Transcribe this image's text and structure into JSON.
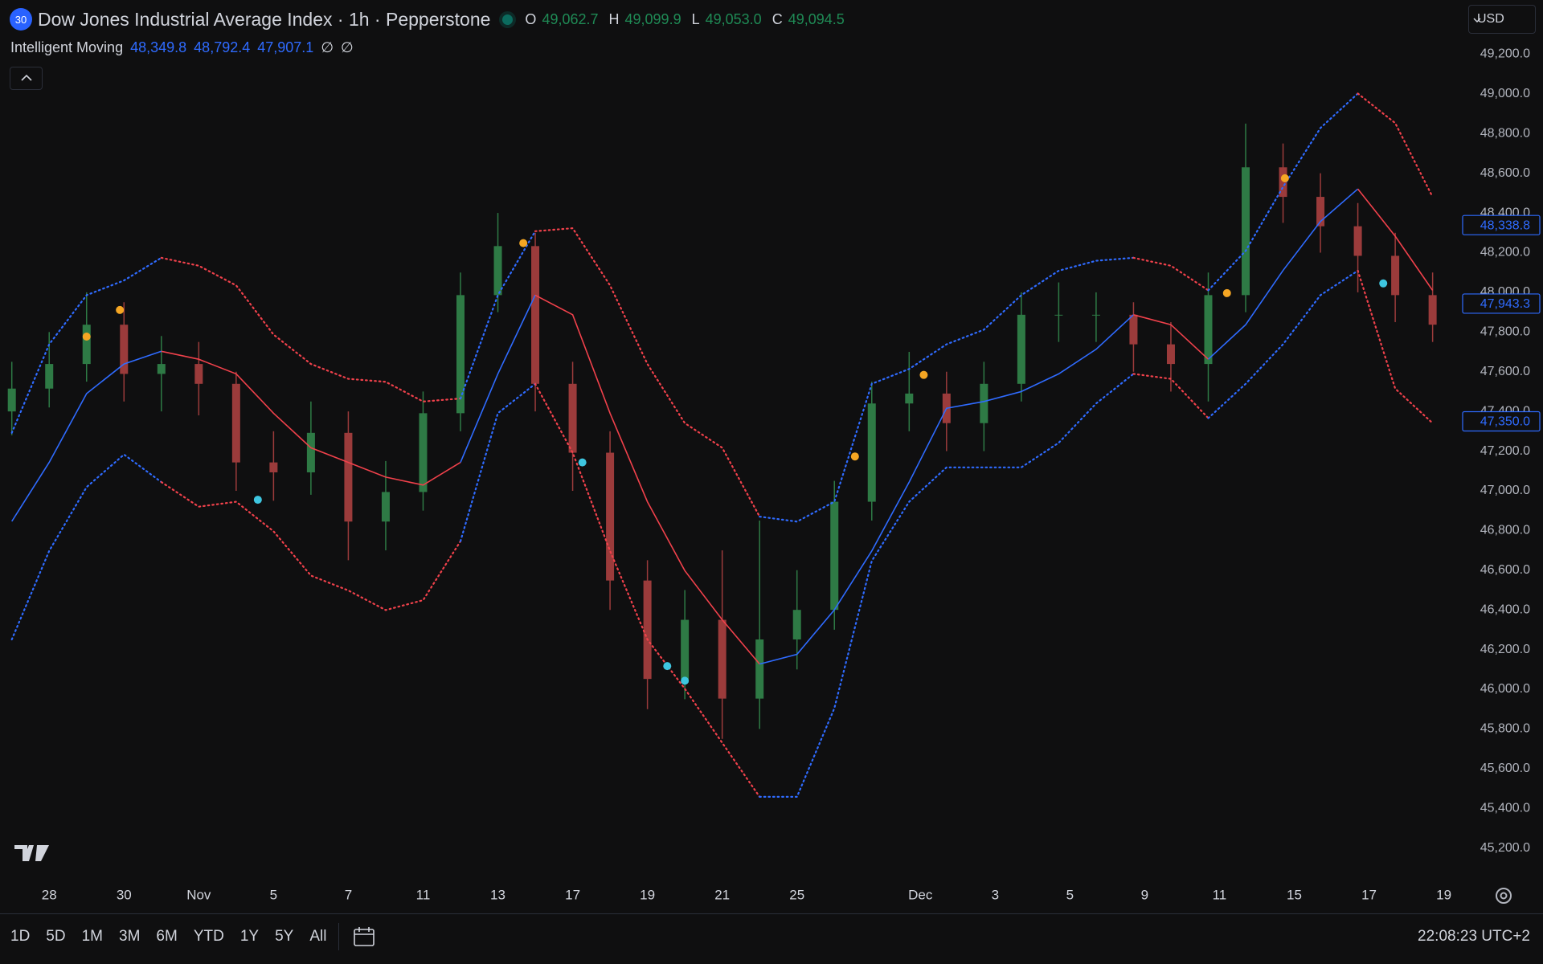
{
  "header": {
    "badge": "30",
    "title": "Dow Jones Industrial Average Index · 1h · Pepperstone",
    "ohlc": [
      {
        "key": "O",
        "value": "49,062.7"
      },
      {
        "key": "H",
        "value": "49,099.9"
      },
      {
        "key": "L",
        "value": "49,053.0"
      },
      {
        "key": "C",
        "value": "49,094.5"
      }
    ],
    "indicator": {
      "name": "Intelligent Moving",
      "values": [
        "48,349.8",
        "48,792.4",
        "47,907.1"
      ],
      "flags": [
        "∅",
        "∅"
      ]
    },
    "currency": "USD"
  },
  "chart_data": {
    "type": "candlestick",
    "x": [
      -1,
      0,
      1,
      2,
      3,
      4,
      5,
      6,
      7,
      8,
      9,
      10,
      11,
      12,
      13,
      14,
      15,
      16,
      17,
      18,
      19,
      20,
      21,
      22,
      23,
      24,
      25,
      26,
      27,
      28,
      29,
      30,
      31,
      32,
      33,
      34,
      35,
      36,
      37
    ],
    "open": [
      47400,
      47515,
      47639,
      47837,
      47589,
      47639,
      47539,
      47143,
      47093,
      47292,
      46845,
      46994,
      47391,
      47986,
      48233,
      47539,
      47192,
      46548,
      46052,
      46350,
      45953,
      46251,
      46400,
      46945,
      47440,
      47490,
      47341,
      47539,
      47887,
      47887,
      47887,
      47738,
      47639,
      47986,
      48630,
      48481,
      48333,
      48184,
      47986
    ],
    "high": [
      47650,
      47800,
      48000,
      47950,
      47780,
      47750,
      47600,
      47300,
      47450,
      47400,
      47150,
      47500,
      48100,
      48400,
      48300,
      47650,
      47300,
      46650,
      46500,
      46700,
      46850,
      46600,
      47050,
      47550,
      47700,
      47600,
      47650,
      48000,
      48050,
      48000,
      47950,
      47850,
      48100,
      48850,
      48750,
      48600,
      48450,
      48300,
      48100
    ],
    "low": [
      47280,
      47420,
      47550,
      47450,
      47400,
      47380,
      47000,
      46950,
      46980,
      46650,
      46700,
      46900,
      47300,
      47900,
      47400,
      47000,
      46400,
      45900,
      45950,
      45750,
      45800,
      46100,
      46300,
      46850,
      47300,
      47200,
      47200,
      47450,
      47750,
      47750,
      47600,
      47500,
      47450,
      47900,
      48350,
      48200,
      48000,
      47850,
      47750
    ],
    "close": [
      47515,
      47639,
      47837,
      47589,
      47639,
      47539,
      47143,
      47093,
      47292,
      46845,
      46994,
      47391,
      47986,
      48233,
      47539,
      47192,
      46548,
      46052,
      46350,
      45953,
      46251,
      46400,
      46945,
      47440,
      47490,
      47341,
      47539,
      47887,
      47887,
      47887,
      47738,
      47639,
      47986,
      48630,
      48481,
      48333,
      48184,
      47986,
      47837
    ],
    "candle_up_color": "#2e7a45",
    "candle_down_color": "#9b3b3b",
    "basis": {
      "values": [
        46846,
        47143,
        47490,
        47639,
        47703,
        47663,
        47589,
        47391,
        47217,
        47143,
        47069,
        47029,
        47143,
        47589,
        47986,
        47887,
        47391,
        46945,
        46598,
        46350,
        46127,
        46176,
        46400,
        46697,
        47044,
        47416,
        47450,
        47500,
        47589,
        47713,
        47887,
        47837,
        47663,
        47837,
        48110,
        48357,
        48521,
        48283,
        48010
      ]
    },
    "bands": [
      {
        "values": [
          47292,
          47738,
          47986,
          48060,
          48174,
          48134,
          48035,
          47787,
          47639,
          47564,
          47549,
          47450,
          47465,
          47986,
          48308,
          48323,
          48035,
          47639,
          47341,
          47217,
          46870,
          46845,
          46945,
          47539,
          47614,
          47738,
          47812,
          47986,
          48109,
          48159,
          48174,
          48134,
          48010,
          48209,
          48531,
          48828,
          49002,
          48853,
          48481
        ]
      },
      {
        "values": [
          46251,
          46697,
          47019,
          47183,
          47044,
          46920,
          46945,
          46796,
          46573,
          46498,
          46399,
          46449,
          46746,
          47391,
          47539,
          47192,
          46697,
          46251,
          46003,
          45730,
          45458,
          45458,
          45904,
          46647,
          46945,
          47118,
          47118,
          47118,
          47242,
          47440,
          47589,
          47564,
          47366,
          47539,
          47738,
          47986,
          48109,
          47515,
          47341
        ]
      }
    ],
    "trend": [
      "up",
      "up",
      "up",
      "up",
      "down",
      "down",
      "down",
      "down",
      "down",
      "down",
      "down",
      "down",
      "up",
      "up",
      "down",
      "down",
      "down",
      "down",
      "down",
      "down",
      "up",
      "up",
      "up",
      "up",
      "up",
      "up",
      "up",
      "up",
      "up",
      "up",
      "down",
      "down",
      "up",
      "up",
      "up",
      "up",
      "down",
      "down",
      "down"
    ],
    "trend_colors": {
      "up": "#2f6bff",
      "down": "#f0414b"
    },
    "signals": [
      {
        "color": "#f5a623",
        "x": [
          1,
          1.89,
          12.68,
          21.55,
          23.39,
          31.5,
          33.05
        ],
        "values": [
          47777,
          47911,
          48248,
          47173,
          47584,
          47996,
          48575
        ]
      },
      {
        "color": "#3ec6e0",
        "x": [
          5.58,
          14.26,
          16.53,
          17,
          35.68
        ],
        "values": [
          46955,
          47143,
          46117,
          46043,
          48045
        ]
      }
    ],
    "price_labels": [
      {
        "value": 48338.8,
        "label": "48,338.8"
      },
      {
        "value": 47943.3,
        "label": "47,943.3"
      },
      {
        "value": 47350.0,
        "label": "47,350.0"
      }
    ],
    "price_label_color": "#2f6bff",
    "grid": false,
    "xlim": [
      -1.316,
      37.76
    ],
    "ylim": [
      45061,
      49473
    ],
    "xticks": [
      {
        "value": 0,
        "label": "28"
      },
      {
        "value": 2,
        "label": "30"
      },
      {
        "value": 4,
        "label": "Nov"
      },
      {
        "value": 6,
        "label": "5"
      },
      {
        "value": 8,
        "label": "7"
      },
      {
        "value": 10,
        "label": "11"
      },
      {
        "value": 12,
        "label": "13"
      },
      {
        "value": 14,
        "label": "17"
      },
      {
        "value": 16,
        "label": "19"
      },
      {
        "value": 18,
        "label": "21"
      },
      {
        "value": 20,
        "label": "25"
      },
      {
        "value": 23.3,
        "label": "Dec"
      },
      {
        "value": 25.3,
        "label": "3"
      },
      {
        "value": 27.3,
        "label": "5"
      },
      {
        "value": 29.3,
        "label": "9"
      },
      {
        "value": 31.3,
        "label": "11"
      },
      {
        "value": 33.3,
        "label": "15"
      },
      {
        "value": 35.3,
        "label": "17"
      },
      {
        "value": 37.3,
        "label": "19"
      }
    ],
    "yticks": [
      {
        "value": 45200,
        "label": "45,200.0"
      },
      {
        "value": 45400,
        "label": "45,400.0"
      },
      {
        "value": 45600,
        "label": "45,600.0"
      },
      {
        "value": 45800,
        "label": "45,800.0"
      },
      {
        "value": 46000,
        "label": "46,000.0"
      },
      {
        "value": 46200,
        "label": "46,200.0"
      },
      {
        "value": 46400,
        "label": "46,400.0"
      },
      {
        "value": 46600,
        "label": "46,600.0"
      },
      {
        "value": 46800,
        "label": "46,800.0"
      },
      {
        "value": 47000,
        "label": "47,000.0"
      },
      {
        "value": 47200,
        "label": "47,200.0"
      },
      {
        "value": 47400,
        "label": "47,400.0"
      },
      {
        "value": 47600,
        "label": "47,600.0"
      },
      {
        "value": 47800,
        "label": "47,800.0"
      },
      {
        "value": 48000,
        "label": "48,000.0"
      },
      {
        "value": 48200,
        "label": "48,200.0"
      },
      {
        "value": 48400,
        "label": "48,400.0"
      },
      {
        "value": 48600,
        "label": "48,600.0"
      },
      {
        "value": 48800,
        "label": "48,800.0"
      },
      {
        "value": 49000,
        "label": "49,000.0"
      },
      {
        "value": 49200,
        "label": "49,200.0"
      }
    ]
  },
  "toolbar": {
    "ranges": [
      "1D",
      "5D",
      "1M",
      "3M",
      "6M",
      "YTD",
      "1Y",
      "5Y",
      "All"
    ],
    "clock": "22:08:23 UTC+2"
  }
}
